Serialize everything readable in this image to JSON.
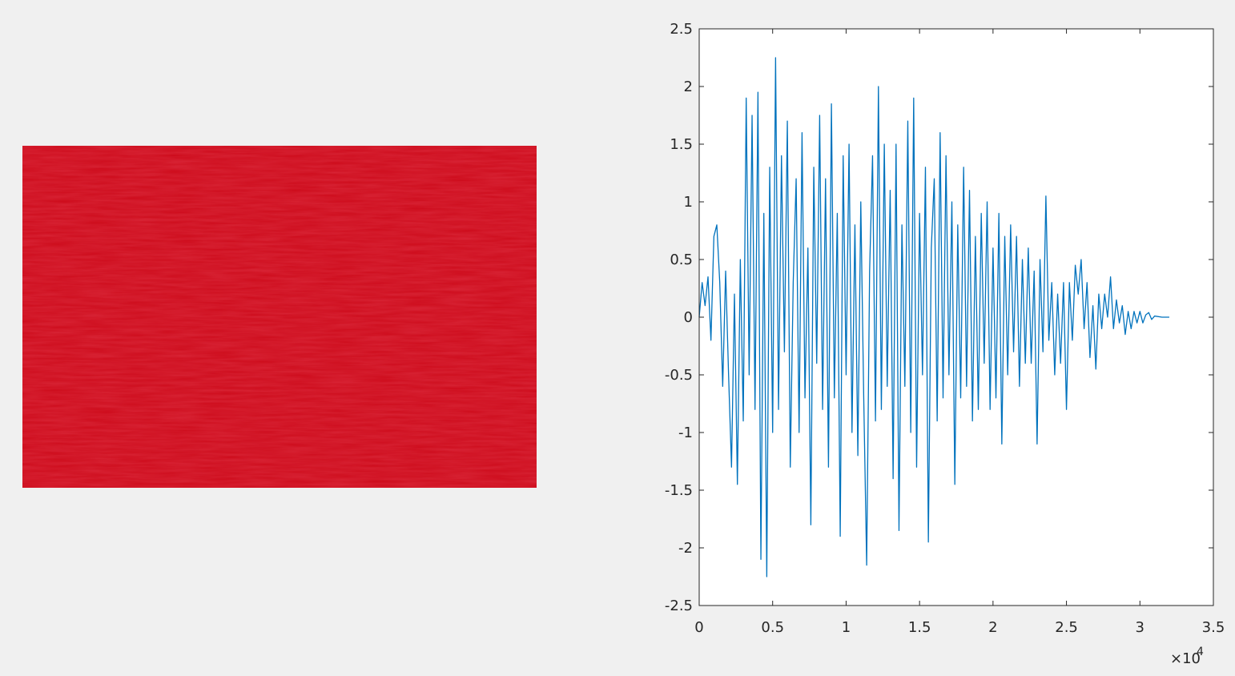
{
  "chart_data": {
    "type": "line",
    "x_multiplier": "×10",
    "x_multiplier_exponent": "4",
    "xlim": [
      0,
      35000
    ],
    "xticks": [
      0,
      {
        "value": 5000,
        "label": "0.5"
      },
      {
        "value": 10000,
        "label": "1"
      },
      {
        "value": 15000,
        "label": "1.5"
      },
      {
        "value": 20000,
        "label": "2"
      },
      {
        "value": 25000,
        "label": "2.5"
      },
      {
        "value": 30000,
        "label": "3"
      },
      {
        "value": 35000,
        "label": "3.5"
      }
    ],
    "ylim": [
      -2.5,
      2.5
    ],
    "yticks": [
      -2.5,
      -2,
      -1.5,
      -1,
      -0.5,
      0,
      0.5,
      1,
      1.5,
      2,
      2.5
    ],
    "box": true,
    "x": [
      0,
      200,
      400,
      600,
      800,
      1000,
      1200,
      1400,
      1600,
      1800,
      2000,
      2200,
      2400,
      2600,
      2800,
      3000,
      3200,
      3400,
      3600,
      3800,
      4000,
      4200,
      4400,
      4600,
      4800,
      5000,
      5200,
      5400,
      5600,
      5800,
      6000,
      6200,
      6400,
      6600,
      6800,
      7000,
      7200,
      7400,
      7600,
      7800,
      8000,
      8200,
      8400,
      8600,
      8800,
      9000,
      9200,
      9400,
      9600,
      9800,
      10000,
      10200,
      10400,
      10600,
      10800,
      11000,
      11200,
      11400,
      11600,
      11800,
      12000,
      12200,
      12400,
      12600,
      12800,
      13000,
      13200,
      13400,
      13600,
      13800,
      14000,
      14200,
      14400,
      14600,
      14800,
      15000,
      15200,
      15400,
      15600,
      15800,
      16000,
      16200,
      16400,
      16600,
      16800,
      17000,
      17200,
      17400,
      17600,
      17800,
      18000,
      18200,
      18400,
      18600,
      18800,
      19000,
      19200,
      19400,
      19600,
      19800,
      20000,
      20200,
      20400,
      20600,
      20800,
      21000,
      21200,
      21400,
      21600,
      21800,
      22000,
      22200,
      22400,
      22600,
      22800,
      23000,
      23200,
      23400,
      23600,
      23800,
      24000,
      24200,
      24400,
      24600,
      24800,
      25000,
      25200,
      25400,
      25600,
      25800,
      26000,
      26200,
      26400,
      26600,
      26800,
      27000,
      27200,
      27400,
      27600,
      27800,
      28000,
      28200,
      28400,
      28600,
      28800,
      29000,
      29200,
      29400,
      29600,
      29800,
      30000,
      30200,
      30400,
      30600,
      30800,
      31000,
      31500,
      32000
    ],
    "series": [
      {
        "color": "#0072bd",
        "values": [
          0,
          0.3,
          0.1,
          0.35,
          -0.2,
          0.7,
          0.8,
          0.3,
          -0.6,
          0.4,
          -0.5,
          -1.3,
          0.2,
          -1.45,
          0.5,
          -0.9,
          1.9,
          -0.5,
          1.75,
          -0.8,
          1.95,
          -2.1,
          0.9,
          -2.25,
          1.3,
          -1.0,
          2.25,
          -0.8,
          1.4,
          -0.3,
          1.7,
          -1.3,
          0.3,
          1.2,
          -1.0,
          1.6,
          -0.7,
          0.6,
          -1.8,
          1.3,
          -0.4,
          1.75,
          -0.8,
          1.2,
          -1.3,
          1.85,
          -0.7,
          0.9,
          -1.9,
          1.4,
          -0.5,
          1.5,
          -1.0,
          0.8,
          -1.2,
          1.0,
          -0.7,
          -2.15,
          0.4,
          1.4,
          -0.9,
          2.0,
          -0.8,
          1.5,
          -0.6,
          1.1,
          -1.4,
          1.5,
          -1.85,
          0.8,
          -0.6,
          1.7,
          -1.0,
          1.9,
          -1.3,
          0.9,
          -0.5,
          1.3,
          -1.95,
          0.6,
          1.2,
          -0.9,
          1.6,
          -0.7,
          1.4,
          -0.5,
          1.0,
          -1.45,
          0.8,
          -0.7,
          1.3,
          -0.6,
          1.1,
          -0.9,
          0.7,
          -0.8,
          0.9,
          -0.4,
          1.0,
          -0.8,
          0.6,
          -0.7,
          0.9,
          -1.1,
          0.7,
          -0.5,
          0.8,
          -0.3,
          0.7,
          -0.6,
          0.5,
          -0.4,
          0.6,
          -0.4,
          0.4,
          -1.1,
          0.5,
          -0.3,
          1.05,
          -0.2,
          0.3,
          -0.5,
          0.2,
          -0.4,
          0.3,
          -0.8,
          0.3,
          -0.2,
          0.45,
          0.2,
          0.5,
          -0.1,
          0.3,
          -0.35,
          0.1,
          -0.45,
          0.2,
          -0.1,
          0.2,
          0.0,
          0.35,
          -0.1,
          0.15,
          -0.05,
          0.1,
          -0.15,
          0.05,
          -0.1,
          0.05,
          -0.05,
          0.05,
          -0.05,
          0.02,
          0.04,
          -0.02,
          0.01,
          0,
          0
        ]
      }
    ]
  }
}
